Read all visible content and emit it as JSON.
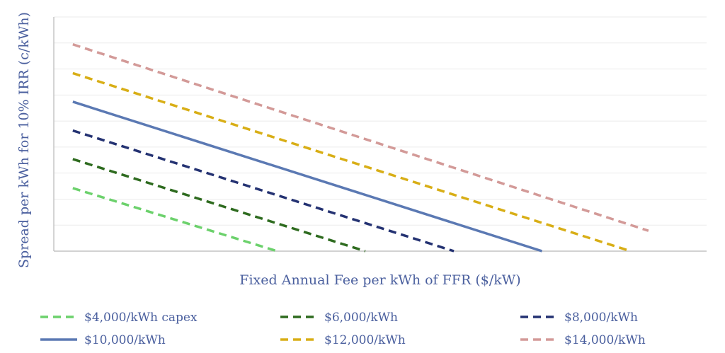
{
  "chart_data": {
    "type": "line",
    "title": "",
    "xlabel": "Fixed Annual Fee per kWh of FFR ($/kW)",
    "ylabel": "Spread per kWh for 10% IRR  (c/kWh)",
    "x": [
      0,
      1
    ],
    "xlim": [
      -0.033,
      1.101
    ],
    "ylim": [
      0,
      1
    ],
    "grid": true,
    "gridlines": 9,
    "legend_position": "bottom",
    "series": [
      {
        "name": "$4,000/kWh capex",
        "color": "#6cd16c",
        "dash": true,
        "values": [
          0.269,
          0.0
        ],
        "x_end": 0.355
      },
      {
        "name": "$6,000/kWh",
        "color": "#2e6b1f",
        "dash": true,
        "values": [
          0.393,
          0.0
        ],
        "x_end": 0.508
      },
      {
        "name": "$8,000/kWh",
        "color": "#243272",
        "dash": true,
        "values": [
          0.515,
          0.0
        ],
        "x_end": 0.662
      },
      {
        "name": "$10,000/kWh",
        "color": "#5b79b3",
        "dash": false,
        "values": [
          0.638,
          0.0
        ],
        "x_end": 0.815
      },
      {
        "name": "$12,000/kWh",
        "color": "#d8ae16",
        "dash": true,
        "values": [
          0.76,
          0.0
        ],
        "x_end": 0.969
      },
      {
        "name": "$14,000/kWh",
        "color": "#d39a98",
        "dash": true,
        "values": [
          0.883,
          0.087
        ],
        "x_end": 1.0
      }
    ]
  }
}
